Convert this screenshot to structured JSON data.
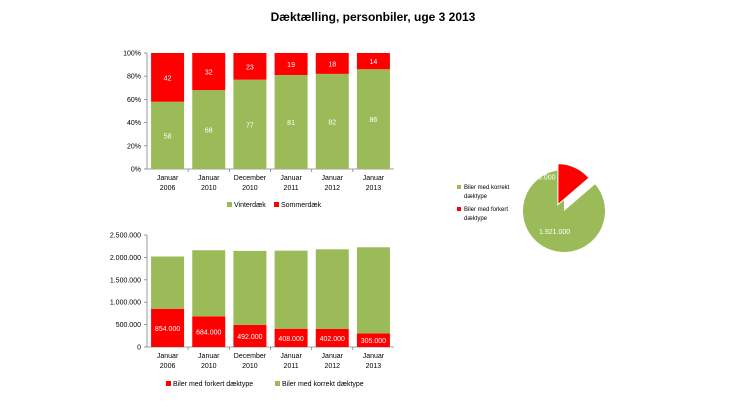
{
  "title": "Dæktælling, personbiler, uge 3 2013",
  "colors": {
    "green": "#9bbb59",
    "red": "#ff0000"
  },
  "chart_data": [
    {
      "type": "bar",
      "stacked": "percent",
      "categories": [
        [
          "Januar",
          "2006"
        ],
        [
          "Januar",
          "2010"
        ],
        [
          "December",
          "2010"
        ],
        [
          "Januar",
          "2011"
        ],
        [
          "Januar",
          "2012"
        ],
        [
          "Januar",
          "2013"
        ]
      ],
      "series": [
        {
          "name": "Vinterdæk",
          "values": [
            58,
            68,
            77,
            81,
            82,
            86
          ]
        },
        {
          "name": "Sommerdæk",
          "values": [
            42,
            32,
            23,
            19,
            18,
            14
          ]
        }
      ],
      "yticks": [
        "0%",
        "20%",
        "40%",
        "60%",
        "80%",
        "100%"
      ],
      "ylim": [
        0,
        100
      ],
      "grid": false,
      "legend": "bottom"
    },
    {
      "type": "bar",
      "stacked": "absolute",
      "categories": [
        [
          "Januar",
          "2006"
        ],
        [
          "Januar",
          "2010"
        ],
        [
          "December",
          "2010"
        ],
        [
          "Januar",
          "2011"
        ],
        [
          "Januar",
          "2012"
        ],
        [
          "Januar",
          "2013"
        ]
      ],
      "series": [
        {
          "name": "Biler med forkert dæktype",
          "values": [
            854000,
            684000,
            492000,
            408000,
            402000,
            305000
          ],
          "labels": [
            "854.000",
            "684.000",
            "492.000",
            "408.000",
            "402.000",
            "305.000"
          ]
        },
        {
          "name": "Biler med korrekt dæktype",
          "values": [
            1166000,
            1476000,
            1654000,
            1742000,
            1778000,
            1921000
          ]
        }
      ],
      "yticks": [
        "0",
        "500.000",
        "1.000.000",
        "1.500.000",
        "2.000.000",
        "2.500.000"
      ],
      "ylim": [
        0,
        2500000
      ],
      "grid": false,
      "legend": "bottom"
    },
    {
      "type": "pie",
      "slices": [
        {
          "name": "Biler med korrekt dæktype",
          "value": 1921000,
          "label": "1.921.000"
        },
        {
          "name": "Biler med forkert dæktype",
          "value": 305000,
          "label": "305.000"
        }
      ],
      "legend_lines": [
        [
          "Biler med korrekt",
          "dæktype"
        ],
        [
          "Biler med forkert",
          "dæktype"
        ]
      ],
      "legend": "left"
    }
  ]
}
